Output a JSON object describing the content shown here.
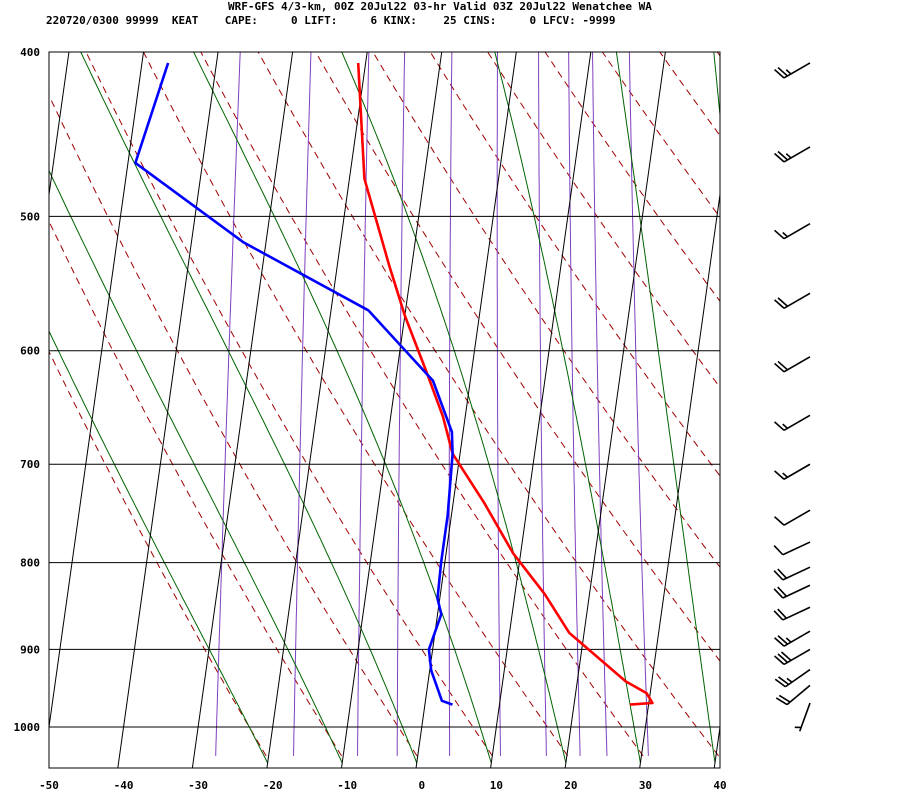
{
  "header": {
    "title": "WRF-GFS 4/3-km, 00Z 20Jul22 03-hr Valid 03Z 20Jul22 Wenatchee WA",
    "index_line": "220720/0300 99999  KEAT    CAPE:     0 LIFT:     6 KINX:    25 CINS:     0 LFCV: -9999"
  },
  "chart_data": {
    "type": "line",
    "title": "WRF-GFS 4/3-km, 00Z 20Jul22 03-hr Valid 03Z 20Jul22 Wenatchee WA",
    "xlabel": "",
    "ylabel": "",
    "xlim": [
      -50,
      40
    ],
    "ylim_pressure": [
      1040,
      400
    ],
    "y_scale": "log-pressure",
    "grid": true,
    "x_ticks": [
      -50,
      -40,
      -30,
      -20,
      -10,
      0,
      10,
      20,
      30,
      40
    ],
    "y_ticks": [
      400,
      500,
      600,
      700,
      800,
      900,
      1000
    ],
    "series": [
      {
        "color": "#ff0000",
        "points": [
          [
            27.5,
            970
          ],
          [
            30.5,
            968
          ],
          [
            29.5,
            955
          ],
          [
            26.5,
            940
          ],
          [
            18,
            880
          ],
          [
            14,
            835
          ],
          [
            9,
            790
          ],
          [
            4.2,
            738
          ],
          [
            -1,
            690
          ],
          [
            -3,
            656
          ],
          [
            -6,
            618
          ],
          [
            -10,
            572
          ],
          [
            -13,
            535
          ],
          [
            -18,
            475
          ],
          [
            -21,
            406
          ]
        ]
      },
      {
        "color": "#0000ff",
        "points": [
          [
            3.7,
            970
          ],
          [
            2.2,
            965
          ],
          [
            0.2,
            926
          ],
          [
            -0.5,
            900
          ],
          [
            0.5,
            858
          ],
          [
            -0.3,
            840
          ],
          [
            -0.5,
            800
          ],
          [
            -0.5,
            750
          ],
          [
            -1,
            690
          ],
          [
            -1.5,
            670
          ],
          [
            -5,
            625
          ],
          [
            -15,
            568
          ],
          [
            -33,
            518
          ],
          [
            -49,
            465
          ],
          [
            -46.5,
            406
          ]
        ]
      }
    ],
    "wind_barbs": [
      {
        "p": 406,
        "dir": 240,
        "spd": 25
      },
      {
        "p": 455,
        "dir": 240,
        "spd": 25
      },
      {
        "p": 505,
        "dir": 240,
        "spd": 15
      },
      {
        "p": 555,
        "dir": 240,
        "spd": 20
      },
      {
        "p": 605,
        "dir": 240,
        "spd": 20
      },
      {
        "p": 655,
        "dir": 240,
        "spd": 15
      },
      {
        "p": 700,
        "dir": 240,
        "spd": 15
      },
      {
        "p": 745,
        "dir": 240,
        "spd": 10
      },
      {
        "p": 778,
        "dir": 245,
        "spd": 10
      },
      {
        "p": 805,
        "dir": 245,
        "spd": 20
      },
      {
        "p": 825,
        "dir": 245,
        "spd": 20
      },
      {
        "p": 850,
        "dir": 245,
        "spd": 20
      },
      {
        "p": 878,
        "dir": 240,
        "spd": 25
      },
      {
        "p": 900,
        "dir": 240,
        "spd": 30
      },
      {
        "p": 925,
        "dir": 235,
        "spd": 25
      },
      {
        "p": 945,
        "dir": 230,
        "spd": 20
      },
      {
        "p": 968,
        "dir": 200,
        "spd": 5
      }
    ]
  },
  "colors": {
    "temperature": "#ff0000",
    "dewpoint": "#0000ff",
    "isotherm": "#000000",
    "dry_adiabat": "#a00000",
    "moist_adiabat": "#006400",
    "mixing_ratio": "#8040c0"
  }
}
